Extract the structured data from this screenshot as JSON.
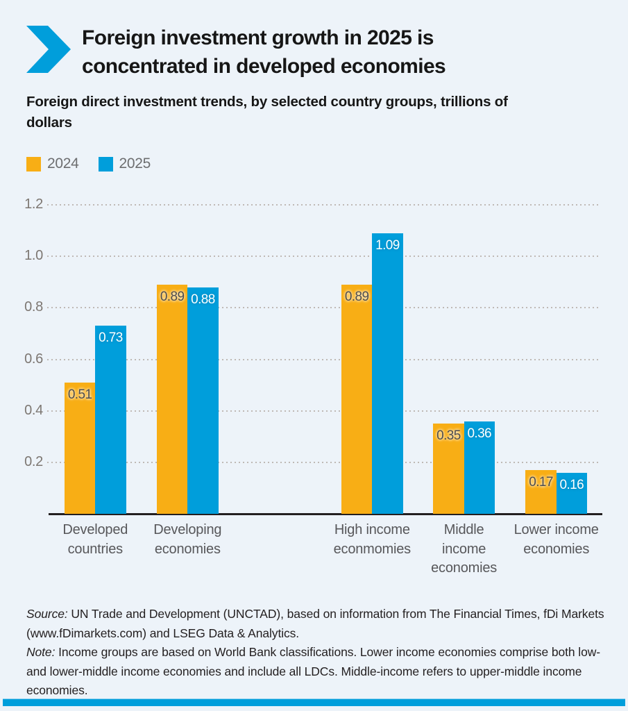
{
  "header": {
    "title_lines": [
      "Foreign investment growth in 2025 is",
      "concentrated in developed economies"
    ],
    "subtitle_lines": [
      "Foreign direct investment trends, by selected country groups, trillions of",
      "dollars"
    ]
  },
  "legend": {
    "items": [
      {
        "label": "2024",
        "color": "#f8ae15"
      },
      {
        "label": "2025",
        "color": "#009edb"
      }
    ]
  },
  "chart_data": {
    "type": "bar",
    "title": "Foreign direct investment trends, by selected country groups, trillions of dollars",
    "categories": [
      "Developed countries",
      "Developing economies",
      "High income econmomies",
      "Middle income economies",
      "Lower income economies"
    ],
    "category_label_lines": [
      [
        "Developed",
        "countries"
      ],
      [
        "Developing",
        "economies"
      ],
      [
        "High income",
        "econmomies"
      ],
      [
        "Middle",
        "income",
        "economies"
      ],
      [
        "Lower income",
        "economies"
      ]
    ],
    "series": [
      {
        "name": "2024",
        "color": "#f8ae15",
        "label_style": "on-orange",
        "values": [
          0.51,
          0.89,
          0.89,
          0.35,
          0.17
        ]
      },
      {
        "name": "2025",
        "color": "#009edb",
        "label_style": "on-blue",
        "values": [
          0.73,
          0.88,
          1.09,
          0.36,
          0.16
        ]
      }
    ],
    "ylim": [
      0,
      1.2
    ],
    "yticks": [
      "0.2",
      "0.4",
      "0.6",
      "0.8",
      "1.0",
      "1.2"
    ],
    "grid": "horizontal-dotted",
    "legend_position": "top-left",
    "value_labels": "inside-top",
    "xlabel": "",
    "ylabel": ""
  },
  "footer": {
    "source_label": "Source:",
    "source_text": " UN Trade and Development (UNCTAD), based on information from The Financial Times, fDi Markets (www.fDimarkets.com) and LSEG Data & Analytics.",
    "note_label": "Note:",
    "note_text": " Income groups are based on World Bank classifications. Lower income economies comprise both low- and lower-middle income economies and include all LDCs. Middle-income refers to upper-middle income economies."
  },
  "colors": {
    "background": "#edf3f9",
    "accent_orange": "#f8ae15",
    "accent_blue": "#009edb",
    "axis_line": "#231f20",
    "grid_dots": "#bfb9b5",
    "ytick_label": "#7d7772",
    "category_label": "#57575a",
    "legend_label": "#6d6e70",
    "title_text": "#161616"
  }
}
